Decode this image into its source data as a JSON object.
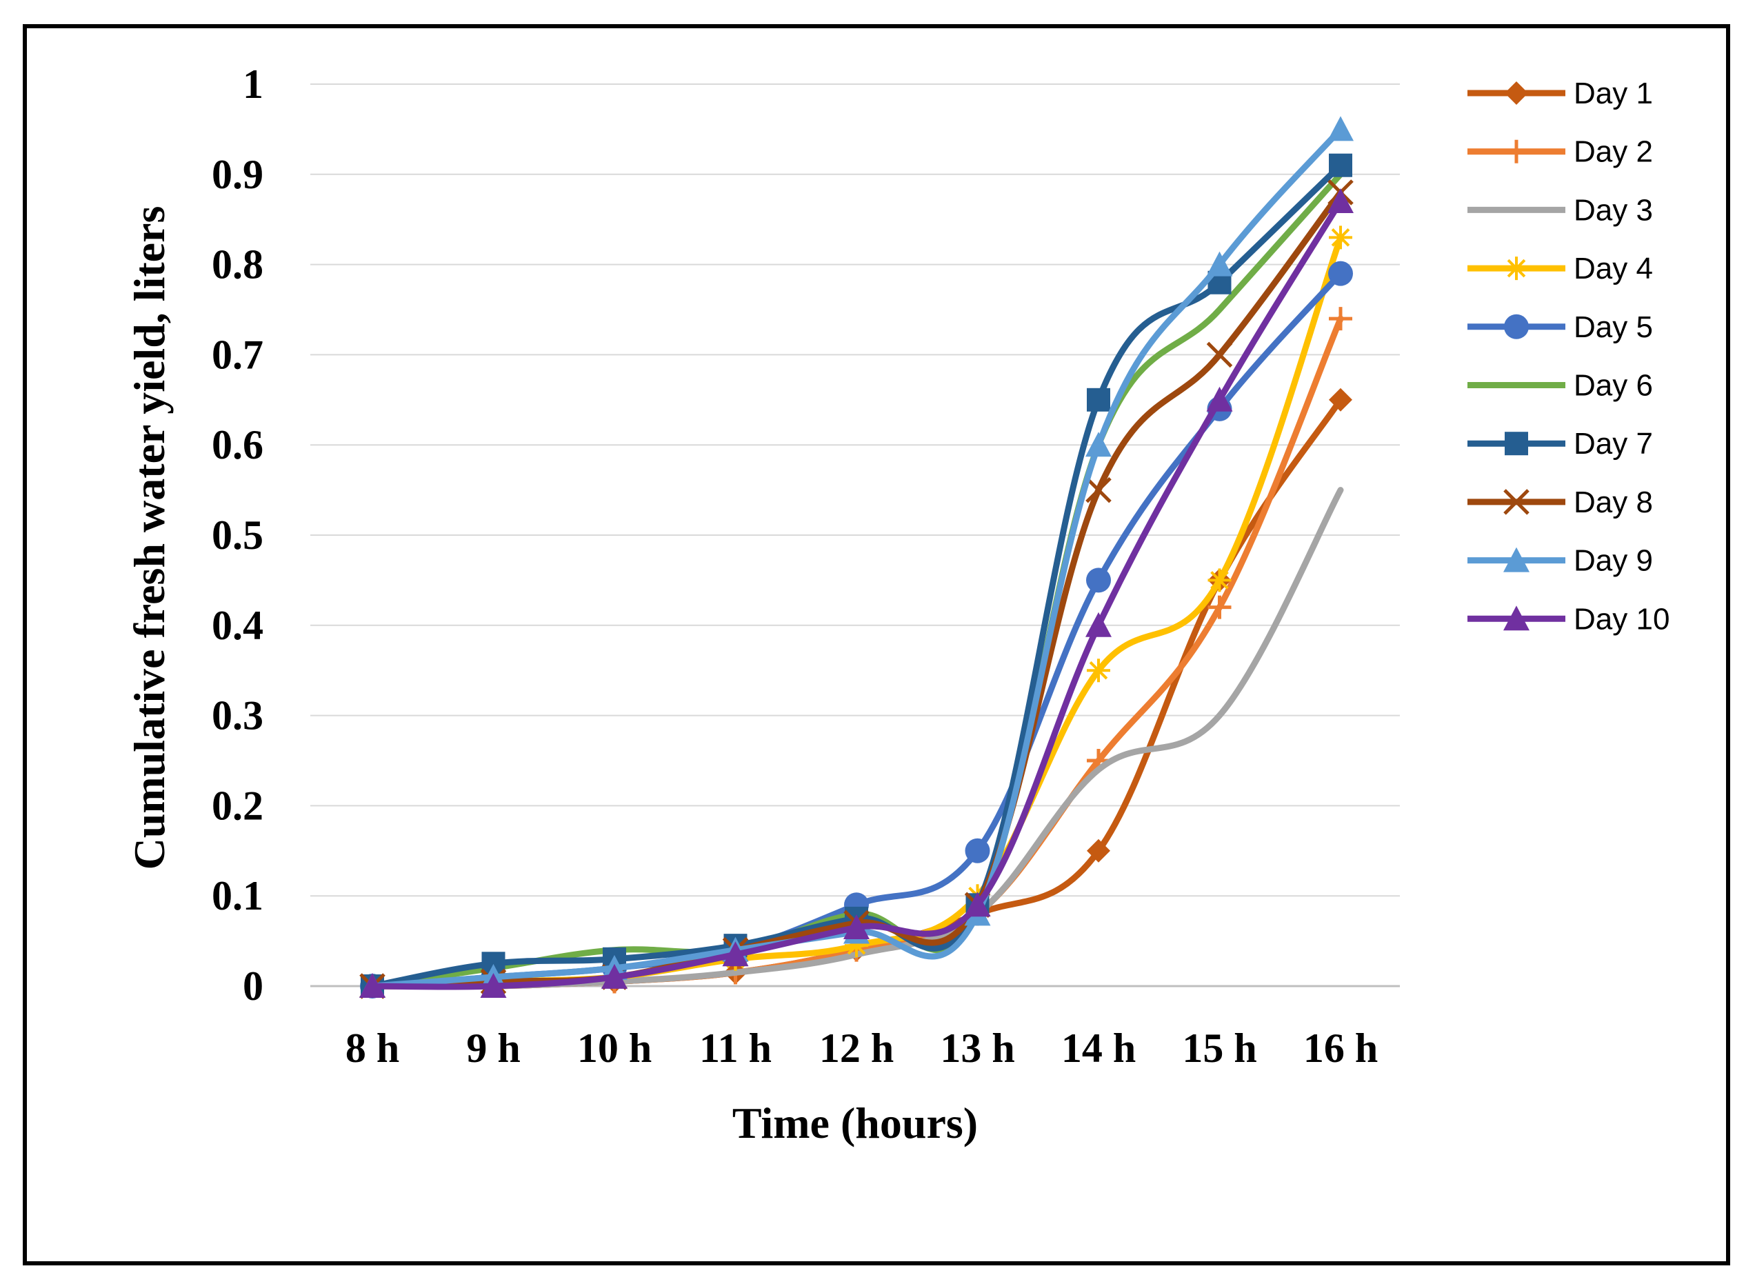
{
  "chart_data": {
    "type": "line",
    "title": "",
    "xlabel": "Time (hours)",
    "ylabel": "Cumulative fresh water yield, liters",
    "categories": [
      "8 h",
      "9 h",
      "10 h",
      "11 h",
      "12 h",
      "13 h",
      "14 h",
      "15 h",
      "16 h"
    ],
    "ylim": [
      0,
      1
    ],
    "yticks": [
      "0",
      "0.1",
      "0.2",
      "0.3",
      "0.4",
      "0.5",
      "0.6",
      "0.7",
      "0.8",
      "0.9",
      "1"
    ],
    "grid": true,
    "legend_position": "right",
    "series": [
      {
        "name": "Day 1",
        "color": "#C55A11",
        "marker": "diamond",
        "values": [
          0,
          0,
          0.005,
          0.015,
          0.04,
          0.08,
          0.15,
          0.45,
          0.65
        ]
      },
      {
        "name": "Day 2",
        "color": "#ED7D31",
        "marker": "plus",
        "values": [
          0,
          0,
          0.005,
          0.015,
          0.04,
          0.08,
          0.25,
          0.42,
          0.74
        ]
      },
      {
        "name": "Day 3",
        "color": "#A5A5A5",
        "marker": "none",
        "values": [
          0,
          0,
          0.005,
          0.015,
          0.035,
          0.08,
          0.24,
          0.3,
          0.55
        ]
      },
      {
        "name": "Day 4",
        "color": "#FFC000",
        "marker": "asterisk",
        "values": [
          0,
          0.005,
          0.01,
          0.03,
          0.045,
          0.1,
          0.35,
          0.45,
          0.83
        ]
      },
      {
        "name": "Day 5",
        "color": "#4472C4",
        "marker": "circle",
        "values": [
          0,
          0.01,
          0.02,
          0.04,
          0.09,
          0.15,
          0.45,
          0.64,
          0.79
        ]
      },
      {
        "name": "Day 6",
        "color": "#70AD47",
        "marker": "none",
        "values": [
          0,
          0.02,
          0.04,
          0.04,
          0.08,
          0.08,
          0.6,
          0.75,
          0.9
        ]
      },
      {
        "name": "Day 7",
        "color": "#255E91",
        "marker": "square",
        "values": [
          0,
          0.025,
          0.03,
          0.045,
          0.075,
          0.09,
          0.65,
          0.78,
          0.91
        ]
      },
      {
        "name": "Day 8",
        "color": "#9E480E",
        "marker": "x",
        "values": [
          0,
          0.005,
          0.01,
          0.04,
          0.07,
          0.09,
          0.55,
          0.7,
          0.88
        ]
      },
      {
        "name": "Day 9",
        "color": "#5B9BD5",
        "marker": "triangle",
        "values": [
          0,
          0.01,
          0.02,
          0.04,
          0.06,
          0.08,
          0.6,
          0.8,
          0.95
        ]
      },
      {
        "name": "Day 10",
        "color": "#7030A0",
        "marker": "triangle",
        "values": [
          0,
          0,
          0.01,
          0.035,
          0.065,
          0.09,
          0.4,
          0.65,
          0.87
        ]
      }
    ]
  }
}
